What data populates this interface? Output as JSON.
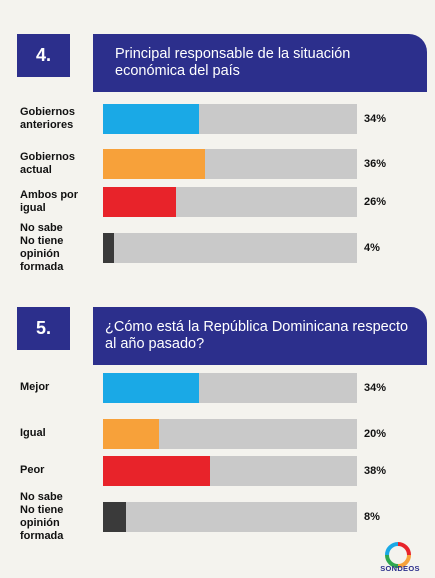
{
  "chart_data": [
    {
      "type": "bar",
      "number": "4.",
      "title": "Principal responsable de la situación económica del país",
      "categories": [
        "Gobiernos anteriores",
        "Gobiernos actual",
        "Ambos por igual",
        "No sabe No tiene opinión formada"
      ],
      "values": [
        34,
        36,
        26,
        4
      ],
      "value_labels": [
        "34%",
        "36%",
        "26%",
        "4%"
      ],
      "colors": [
        "#1aa9e6",
        "#f7a13a",
        "#e8232a",
        "#3a3a3a"
      ],
      "xlim": [
        0,
        90
      ]
    },
    {
      "type": "bar",
      "number": "5.",
      "title": "¿Cómo está la República Dominicana respecto al año pasado?",
      "categories": [
        "Mejor",
        "Igual",
        "Peor",
        "No sabe No tiene opinión formada"
      ],
      "values": [
        34,
        20,
        38,
        8
      ],
      "value_labels": [
        "34%",
        "20%",
        "38%",
        "8%"
      ],
      "colors": [
        "#1aa9e6",
        "#f7a13a",
        "#e8232a",
        "#3a3a3a"
      ],
      "xlim": [
        0,
        90
      ]
    }
  ],
  "labels4": [
    "Gobiernos\nanteriores",
    "Gobiernos\nactual",
    "Ambos por igual",
    "No sabe\nNo tiene opinión\nformada"
  ],
  "labels5": [
    "Mejor",
    "Igual",
    "Peor",
    "No sabe\nNo tiene opinión\nformada"
  ],
  "logo": {
    "text": "SONDEOS"
  }
}
